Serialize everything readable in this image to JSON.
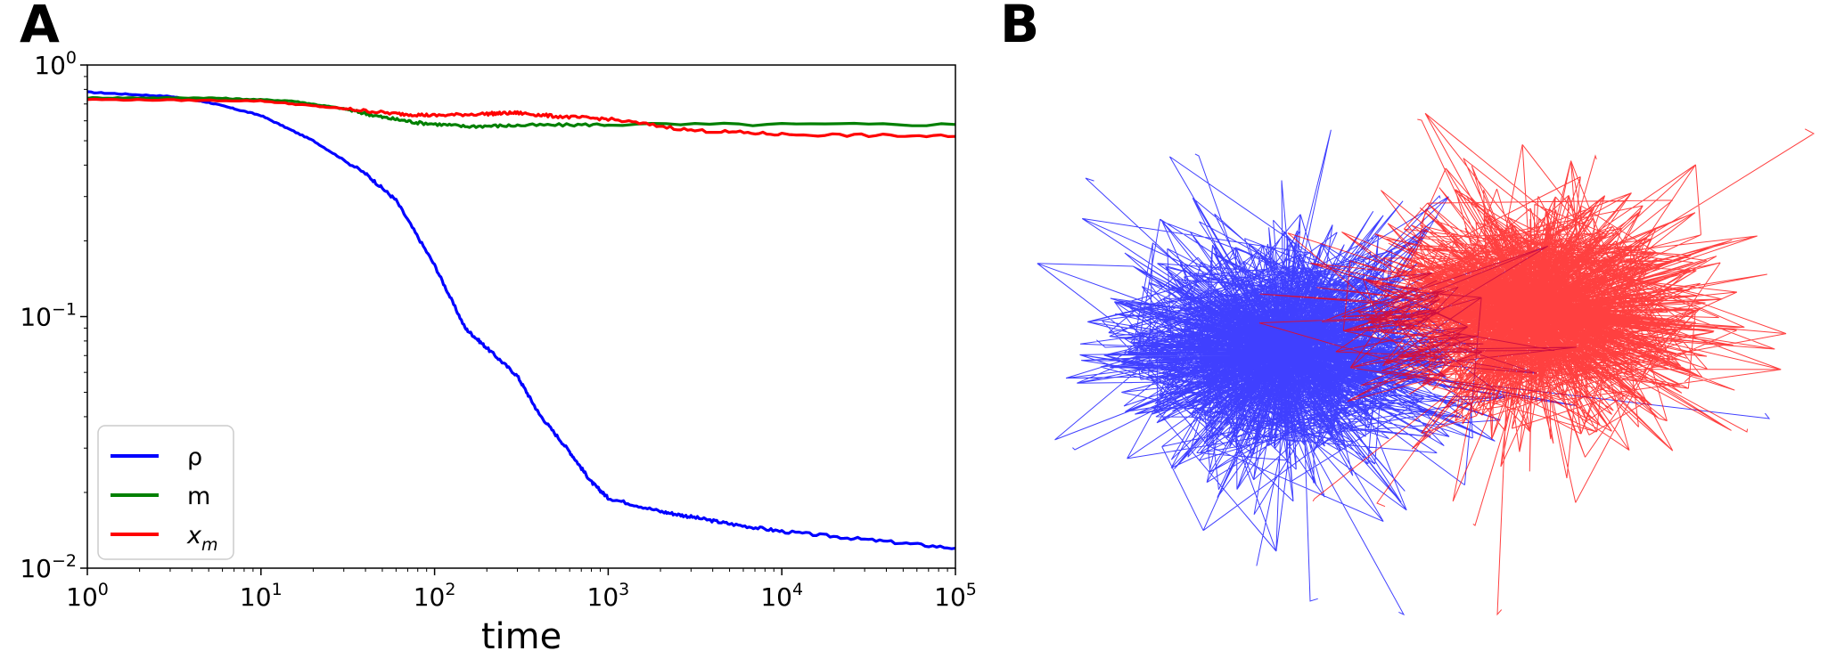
{
  "panels": {
    "a_label": "A",
    "b_label": "B"
  },
  "chart_data": [
    {
      "type": "line",
      "panel": "A",
      "title": "",
      "xlabel": "time",
      "ylabel": "",
      "xscale": "log",
      "yscale": "log",
      "xlim": [
        1,
        100000
      ],
      "ylim": [
        0.01,
        1
      ],
      "grid": false,
      "legend_position": "bottom-left",
      "x_ticks": [
        {
          "base": "10",
          "exp": "0",
          "value": 1
        },
        {
          "base": "10",
          "exp": "1",
          "value": 10
        },
        {
          "base": "10",
          "exp": "2",
          "value": 100
        },
        {
          "base": "10",
          "exp": "3",
          "value": 1000
        },
        {
          "base": "10",
          "exp": "4",
          "value": 10000
        },
        {
          "base": "10",
          "exp": "5",
          "value": 100000
        }
      ],
      "y_ticks": [
        {
          "base": "10",
          "exp": "0",
          "value": 1
        },
        {
          "base": "10",
          "exp": "−1",
          "value": 0.1
        },
        {
          "base": "10",
          "exp": "−2",
          "value": 0.01
        }
      ],
      "series": [
        {
          "name": "ρ",
          "color": "#0000ff",
          "points": [
            [
              1,
              0.78
            ],
            [
              3,
              0.75
            ],
            [
              5,
              0.71
            ],
            [
              10,
              0.63
            ],
            [
              20,
              0.5
            ],
            [
              40,
              0.37
            ],
            [
              60,
              0.29
            ],
            [
              100,
              0.16
            ],
            [
              150,
              0.09
            ],
            [
              200,
              0.075
            ],
            [
              300,
              0.058
            ],
            [
              400,
              0.041
            ],
            [
              600,
              0.029
            ],
            [
              800,
              0.022
            ],
            [
              1000,
              0.019
            ],
            [
              2000,
              0.0168
            ],
            [
              3000,
              0.016
            ],
            [
              5000,
              0.015
            ],
            [
              10000,
              0.014
            ],
            [
              30000,
              0.013
            ],
            [
              100000,
              0.012
            ]
          ]
        },
        {
          "name": "m",
          "color": "#008000",
          "points": [
            [
              1,
              0.74
            ],
            [
              5,
              0.74
            ],
            [
              15,
              0.72
            ],
            [
              30,
              0.67
            ],
            [
              50,
              0.62
            ],
            [
              80,
              0.59
            ],
            [
              150,
              0.57
            ],
            [
              300,
              0.575
            ],
            [
              1000,
              0.58
            ],
            [
              100000,
              0.58
            ]
          ]
        },
        {
          "name": "x_m",
          "label_base": "x",
          "label_sub": "m",
          "color": "#ff0000",
          "points": [
            [
              1,
              0.73
            ],
            [
              10,
              0.72
            ],
            [
              30,
              0.67
            ],
            [
              60,
              0.64
            ],
            [
              100,
              0.63
            ],
            [
              200,
              0.64
            ],
            [
              300,
              0.645
            ],
            [
              500,
              0.625
            ],
            [
              1000,
              0.61
            ],
            [
              3000,
              0.55
            ],
            [
              10000,
              0.53
            ],
            [
              100000,
              0.52
            ]
          ]
        }
      ]
    },
    {
      "type": "network",
      "panel": "B",
      "communities": [
        {
          "name": "blue",
          "color": "#0000ff"
        },
        {
          "name": "red",
          "color": "#ff0000"
        }
      ]
    }
  ]
}
